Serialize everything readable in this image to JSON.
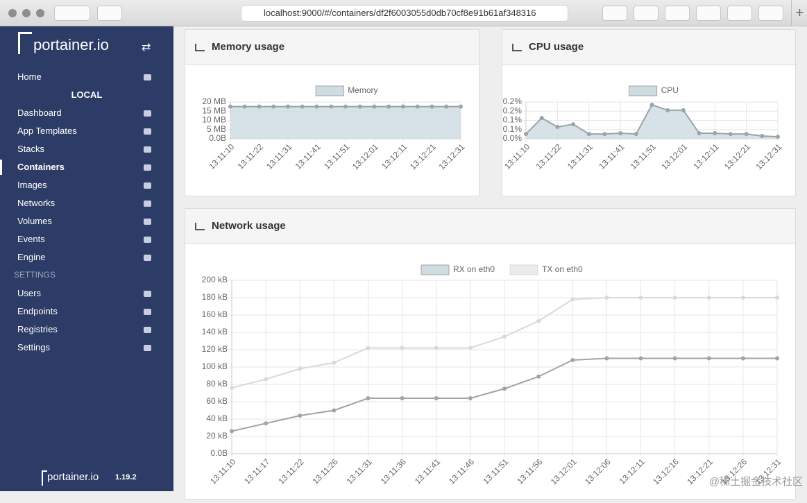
{
  "browser": {
    "url": "localhost:9000/#/containers/df2f6003055d0db70cf8e91b61af348316"
  },
  "sidebar": {
    "logo": "portainer.io",
    "home": "Home",
    "endpoint": "LOCAL",
    "items": [
      "Dashboard",
      "App Templates",
      "Stacks",
      "Containers",
      "Images",
      "Networks",
      "Volumes",
      "Events",
      "Engine"
    ],
    "active": "Containers",
    "settings_heading": "SETTINGS",
    "settings_items": [
      "Users",
      "Endpoints",
      "Registries",
      "Settings"
    ],
    "footer_logo": "portainer.io",
    "version": "1.19.2"
  },
  "chart_data": [
    {
      "type": "line",
      "title": "Memory usage",
      "categories": [
        "13:11:10",
        null,
        "13:11:22",
        null,
        "13:11:31",
        null,
        "13:11:41",
        null,
        "13:11:51",
        null,
        "13:12:01",
        null,
        "13:12:11",
        null,
        "13:12:21",
        null,
        "13:12:31"
      ],
      "series": [
        {
          "name": "Memory",
          "color": "#9aa5a8",
          "fill_color": "#cfdde3",
          "fill": true,
          "values": [
            17.5,
            17.5,
            17.5,
            17.5,
            17.5,
            17.5,
            17.5,
            17.5,
            17.5,
            17.5,
            17.5,
            17.5,
            17.5,
            17.5,
            17.5,
            17.5,
            17.5
          ]
        }
      ],
      "ylim": [
        0,
        20
      ],
      "yticks": [
        {
          "value": 0,
          "label": "0.0B"
        },
        {
          "value": 5,
          "label": "5 MB"
        },
        {
          "value": 10,
          "label": "10 MB"
        },
        {
          "value": 15,
          "label": "15 MB"
        },
        {
          "value": 20,
          "label": "20 MB"
        }
      ],
      "grid": true
    },
    {
      "type": "line",
      "title": "CPU usage",
      "categories": [
        "13:11:10",
        null,
        "13:11:22",
        null,
        "13:11:31",
        null,
        "13:11:41",
        null,
        "13:11:51",
        null,
        "13:12:01",
        null,
        "13:12:11",
        null,
        "13:12:21",
        null,
        "13:12:31"
      ],
      "series": [
        {
          "name": "CPU",
          "color": "#9aa5a8",
          "fill_color": "#cfdde3",
          "fill": true,
          "values": [
            0.026,
            0.113,
            0.064,
            0.079,
            0.026,
            0.026,
            0.03,
            0.026,
            0.185,
            0.155,
            0.155,
            0.03,
            0.03,
            0.026,
            0.026,
            0.015,
            0.011
          ]
        }
      ],
      "ylim": [
        0,
        0.2
      ],
      "yticks": [
        {
          "value": 0,
          "label": "0.0%"
        },
        {
          "value": 0.05,
          "label": "0.1%"
        },
        {
          "value": 0.1,
          "label": "0.1%"
        },
        {
          "value": 0.15,
          "label": "0.2%"
        },
        {
          "value": 0.2,
          "label": "0.2%"
        }
      ],
      "grid": true
    },
    {
      "type": "line",
      "title": "Network usage",
      "categories": [
        "13:11:10",
        "13:11:17",
        "13:11:22",
        "13:11:26",
        "13:11:31",
        "13:11:36",
        "13:11:41",
        "13:11:46",
        "13:11:51",
        "13:11:56",
        "13:12:01",
        "13:12:06",
        "13:12:11",
        "13:12:16",
        "13:12:21",
        "13:12:26",
        "13:12:31"
      ],
      "series": [
        {
          "name": "RX on eth0",
          "color": "#a3a3a3",
          "fill_color": "#cfdde3",
          "fill": false,
          "values": [
            26,
            35,
            44,
            50,
            64,
            64,
            64,
            64,
            75,
            89,
            108,
            110,
            110,
            110,
            110,
            110,
            110
          ]
        },
        {
          "name": "TX on eth0",
          "color": "#d9d9d9",
          "fill_color": "#ececec",
          "fill": false,
          "values": [
            76,
            86,
            98,
            105,
            122,
            122,
            122,
            122,
            135,
            153,
            178,
            180,
            180,
            180,
            180,
            180,
            180
          ]
        }
      ],
      "ylim": [
        0,
        200
      ],
      "yticks": [
        {
          "value": 0,
          "label": "0.0B"
        },
        {
          "value": 20,
          "label": "20 kB"
        },
        {
          "value": 40,
          "label": "40 kB"
        },
        {
          "value": 60,
          "label": "60 kB"
        },
        {
          "value": 80,
          "label": "80 kB"
        },
        {
          "value": 100,
          "label": "100 kB"
        },
        {
          "value": 120,
          "label": "120 kB"
        },
        {
          "value": 140,
          "label": "140 kB"
        },
        {
          "value": 160,
          "label": "160 kB"
        },
        {
          "value": 180,
          "label": "180 kB"
        },
        {
          "value": 200,
          "label": "200 kB"
        }
      ],
      "grid": true
    }
  ],
  "watermark": "@稀土掘金技术社区"
}
